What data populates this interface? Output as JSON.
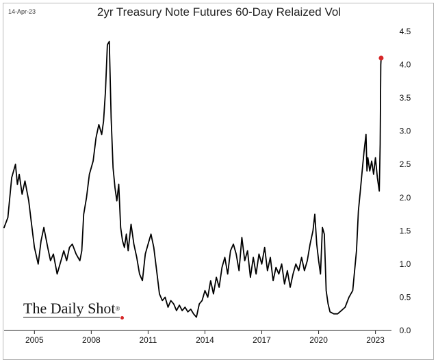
{
  "header": {
    "date": "14-Apr-23"
  },
  "branding": {
    "text": "The Daily Shot",
    "mark": "®"
  },
  "chart_data": {
    "type": "line",
    "title": "2yr Treasury Note Futures 60-Day Relaized Vol",
    "xlabel": "",
    "ylabel": "",
    "xlim": [
      2003.4,
      2023.7
    ],
    "ylim": [
      0,
      4.5
    ],
    "y_axis_side": "right",
    "x_ticks": [
      2005,
      2008,
      2011,
      2014,
      2017,
      2020,
      2023
    ],
    "x_tick_labels": [
      "2005",
      "2008",
      "2011",
      "2014",
      "2017",
      "2020",
      "2023"
    ],
    "y_ticks": [
      0,
      0.5,
      1,
      1.5,
      2,
      2.5,
      3,
      3.5,
      4,
      4.5
    ],
    "y_tick_labels": [
      "0.0",
      "0.5",
      "1.0",
      "1.5",
      "2.0",
      "2.5",
      "3.0",
      "3.5",
      "4.0",
      "4.5"
    ],
    "grid": false,
    "series": [
      {
        "name": "60-Day Realized Vol",
        "color": "#000000",
        "x": [
          2003.4,
          2003.6,
          2003.8,
          2004.0,
          2004.1,
          2004.2,
          2004.35,
          2004.5,
          2004.7,
          2004.85,
          2005.0,
          2005.2,
          2005.35,
          2005.5,
          2005.7,
          2005.85,
          2006.0,
          2006.2,
          2006.4,
          2006.55,
          2006.7,
          2006.85,
          2007.0,
          2007.2,
          2007.4,
          2007.5,
          2007.6,
          2007.75,
          2007.9,
          2008.1,
          2008.25,
          2008.4,
          2008.55,
          2008.65,
          2008.75,
          2008.85,
          2008.95,
          2009.05,
          2009.15,
          2009.25,
          2009.35,
          2009.45,
          2009.55,
          2009.65,
          2009.75,
          2009.85,
          2009.95,
          2010.1,
          2010.25,
          2010.4,
          2010.55,
          2010.7,
          2010.85,
          2011.0,
          2011.15,
          2011.3,
          2011.45,
          2011.6,
          2011.75,
          2011.9,
          2012.05,
          2012.2,
          2012.35,
          2012.5,
          2012.65,
          2012.8,
          2012.95,
          2013.1,
          2013.25,
          2013.4,
          2013.55,
          2013.7,
          2013.85,
          2014.0,
          2014.15,
          2014.3,
          2014.45,
          2014.6,
          2014.75,
          2014.9,
          2015.05,
          2015.2,
          2015.35,
          2015.5,
          2015.65,
          2015.8,
          2015.95,
          2016.1,
          2016.25,
          2016.4,
          2016.55,
          2016.7,
          2016.85,
          2017.0,
          2017.15,
          2017.3,
          2017.45,
          2017.6,
          2017.75,
          2017.9,
          2018.05,
          2018.2,
          2018.35,
          2018.5,
          2018.65,
          2018.8,
          2018.95,
          2019.1,
          2019.25,
          2019.4,
          2019.55,
          2019.7,
          2019.8,
          2019.9,
          2020.0,
          2020.1,
          2020.2,
          2020.3,
          2020.4,
          2020.5,
          2020.6,
          2020.8,
          2021.0,
          2021.2,
          2021.4,
          2021.6,
          2021.8,
          2022.0,
          2022.1,
          2022.2,
          2022.3,
          2022.4,
          2022.5,
          2022.55,
          2022.6,
          2022.7,
          2022.8,
          2022.9,
          2023.0,
          2023.1,
          2023.2,
          2023.25,
          2023.28,
          2023.3
        ],
        "values": [
          1.55,
          1.7,
          2.3,
          2.5,
          2.2,
          2.35,
          2.05,
          2.25,
          1.95,
          1.6,
          1.25,
          1.0,
          1.35,
          1.55,
          1.25,
          1.05,
          1.15,
          0.85,
          1.05,
          1.2,
          1.05,
          1.25,
          1.3,
          1.15,
          1.05,
          1.2,
          1.75,
          2.0,
          2.35,
          2.55,
          2.9,
          3.1,
          2.95,
          3.15,
          3.6,
          4.3,
          4.35,
          3.2,
          2.45,
          2.15,
          1.95,
          2.2,
          1.55,
          1.35,
          1.25,
          1.45,
          1.2,
          1.6,
          1.3,
          1.1,
          0.85,
          0.75,
          1.15,
          1.3,
          1.45,
          1.25,
          0.9,
          0.55,
          0.45,
          0.5,
          0.35,
          0.45,
          0.4,
          0.3,
          0.38,
          0.3,
          0.35,
          0.28,
          0.32,
          0.25,
          0.2,
          0.4,
          0.45,
          0.6,
          0.5,
          0.75,
          0.55,
          0.8,
          0.65,
          0.95,
          1.1,
          0.85,
          1.2,
          1.3,
          1.15,
          0.9,
          1.4,
          1.05,
          1.2,
          0.8,
          1.1,
          0.85,
          1.15,
          1.0,
          1.25,
          0.9,
          1.1,
          0.75,
          0.95,
          0.85,
          1.0,
          0.7,
          0.9,
          0.65,
          0.85,
          1.0,
          0.9,
          1.1,
          0.9,
          1.05,
          1.3,
          1.5,
          1.75,
          1.3,
          1.05,
          0.85,
          1.55,
          1.45,
          0.6,
          0.4,
          0.28,
          0.25,
          0.25,
          0.3,
          0.35,
          0.5,
          0.6,
          1.2,
          1.8,
          2.1,
          2.4,
          2.7,
          2.95,
          2.4,
          2.6,
          2.4,
          2.55,
          2.35,
          2.6,
          2.3,
          2.1,
          2.8,
          4.0,
          4.1
        ]
      }
    ],
    "annotations": [
      {
        "type": "marker",
        "x": 2023.3,
        "y": 4.1,
        "color": "#d62728"
      }
    ]
  }
}
